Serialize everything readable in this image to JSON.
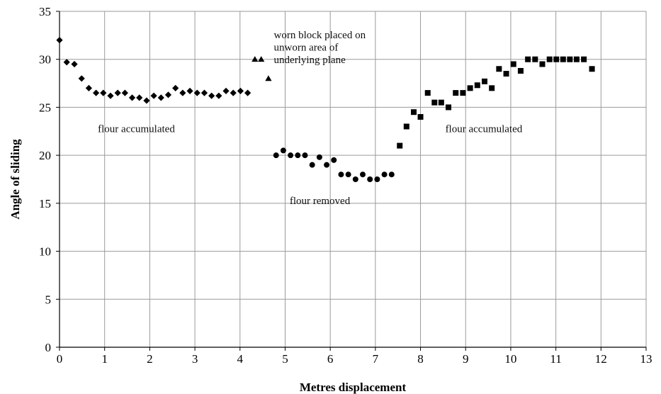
{
  "chart_data": {
    "type": "scatter",
    "xlabel": "Metres displacement",
    "ylabel": "Angle of sliding",
    "xlim": [
      0,
      13
    ],
    "ylim": [
      0,
      35
    ],
    "x_ticks": [
      0,
      1,
      2,
      3,
      4,
      5,
      6,
      7,
      8,
      9,
      10,
      11,
      12,
      13
    ],
    "y_ticks": [
      0,
      5,
      10,
      15,
      20,
      25,
      30,
      35
    ],
    "grid": true,
    "legend": "none",
    "series": [
      {
        "marker": "diamond",
        "color": "#000000",
        "x": [
          0.0,
          0.16,
          0.33,
          0.49,
          0.65,
          0.81,
          0.97,
          1.13,
          1.29,
          1.45,
          1.61,
          1.77,
          1.93,
          2.09,
          2.25,
          2.41,
          2.57,
          2.73,
          2.89,
          3.05,
          3.21,
          3.37,
          3.53,
          3.69,
          3.85,
          4.01,
          4.17
        ],
        "y": [
          32.0,
          29.7,
          29.5,
          28.0,
          27.0,
          26.5,
          26.5,
          26.2,
          26.5,
          26.5,
          26.0,
          26.0,
          25.7,
          26.2,
          26.0,
          26.3,
          27.0,
          26.5,
          26.7,
          26.5,
          26.5,
          26.2,
          26.2,
          26.7,
          26.5,
          26.7,
          26.5
        ]
      },
      {
        "marker": "triangle",
        "color": "#000000",
        "x": [
          4.33,
          4.47,
          4.63
        ],
        "y": [
          30.0,
          30.0,
          28.0
        ]
      },
      {
        "marker": "circle",
        "color": "#000000",
        "x": [
          4.8,
          4.96,
          5.12,
          5.28,
          5.44,
          5.6,
          5.76,
          5.92,
          6.08,
          6.24,
          6.4,
          6.56,
          6.72,
          6.88,
          7.04,
          7.2,
          7.36
        ],
        "y": [
          20.0,
          20.5,
          20.0,
          20.0,
          20.0,
          19.0,
          19.8,
          19.0,
          19.5,
          18.0,
          18.0,
          17.5,
          18.0,
          17.5,
          17.5,
          18.0,
          18.0
        ]
      },
      {
        "marker": "square",
        "color": "#000000",
        "x": [
          7.54,
          7.69,
          7.85,
          8.0,
          8.16,
          8.31,
          8.46,
          8.62,
          8.78,
          8.94,
          9.1,
          9.26,
          9.42,
          9.58,
          9.74,
          9.9,
          10.06,
          10.22,
          10.38,
          10.54,
          10.7,
          10.86,
          11.01,
          11.16,
          11.31,
          11.46,
          11.62,
          11.8
        ],
        "y": [
          21.0,
          23.0,
          24.5,
          24.0,
          26.5,
          25.5,
          25.5,
          25.0,
          26.5,
          26.5,
          27.0,
          27.3,
          27.7,
          27.0,
          29.0,
          28.5,
          29.5,
          28.8,
          30.0,
          30.0,
          29.5,
          30.0,
          30.0,
          30.0,
          30.0,
          30.0,
          30.0,
          29.0
        ]
      }
    ],
    "annotations": [
      {
        "text": "flour accumulated",
        "x": 0.85,
        "y": 22.4
      },
      {
        "text": "worn block placed on",
        "x": 4.75,
        "y": 32.2
      },
      {
        "text": "unworn area of",
        "x": 4.75,
        "y": 30.9
      },
      {
        "text": "underlying plane",
        "x": 4.75,
        "y": 29.6
      },
      {
        "text": "flour removed",
        "x": 5.1,
        "y": 14.9
      },
      {
        "text": "flour accumulated",
        "x": 8.55,
        "y": 22.4
      }
    ]
  }
}
